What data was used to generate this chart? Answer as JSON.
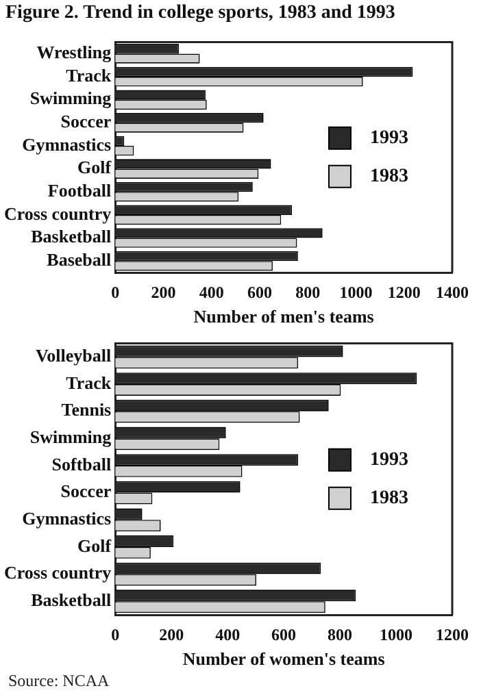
{
  "chart_data": [
    {
      "type": "bar",
      "orientation": "horizontal",
      "title": "Figure 2. Trend in college sports, 1983 and 1993",
      "xlabel": "Number of men's teams",
      "categories": [
        "Wrestling",
        "Track",
        "Swimming",
        "Soccer",
        "Gymnastics",
        "Golf",
        "Football",
        "Cross country",
        "Basketball",
        "Baseball"
      ],
      "series": [
        {
          "name": "1993",
          "color": "#2a2a2a",
          "values": [
            264,
            1236,
            375,
            616,
            37,
            647,
            571,
            734,
            861,
            759
          ]
        },
        {
          "name": "1983",
          "color": "#d0d0d0",
          "values": [
            351,
            1029,
            380,
            533,
            77,
            595,
            512,
            689,
            755,
            654
          ]
        }
      ],
      "xlim": [
        0,
        1400
      ],
      "xticks": [
        0,
        200,
        400,
        600,
        800,
        1000,
        1200,
        1400
      ],
      "grid": false,
      "legend": "right"
    },
    {
      "type": "bar",
      "orientation": "horizontal",
      "xlabel": "Number of women's teams",
      "categories": [
        "Volleyball",
        "Track",
        "Tennis",
        "Swimming",
        "Softball",
        "Soccer",
        "Gymnastics",
        "Golf",
        "Cross country",
        "Basketball"
      ],
      "series": [
        {
          "name": "1993",
          "color": "#2a2a2a",
          "values": [
            811,
            1074,
            760,
            394,
            651,
            445,
            96,
            207,
            732,
            856
          ]
        },
        {
          "name": "1983",
          "color": "#d0d0d0",
          "values": [
            651,
            803,
            657,
            371,
            452,
            132,
            162,
            126,
            502,
            748
          ]
        }
      ],
      "xlim": [
        0,
        1200
      ],
      "xticks": [
        0,
        200,
        400,
        600,
        800,
        1000,
        1200
      ],
      "grid": false,
      "legend": "right",
      "annotations": [
        "Source: NCAA"
      ]
    }
  ]
}
